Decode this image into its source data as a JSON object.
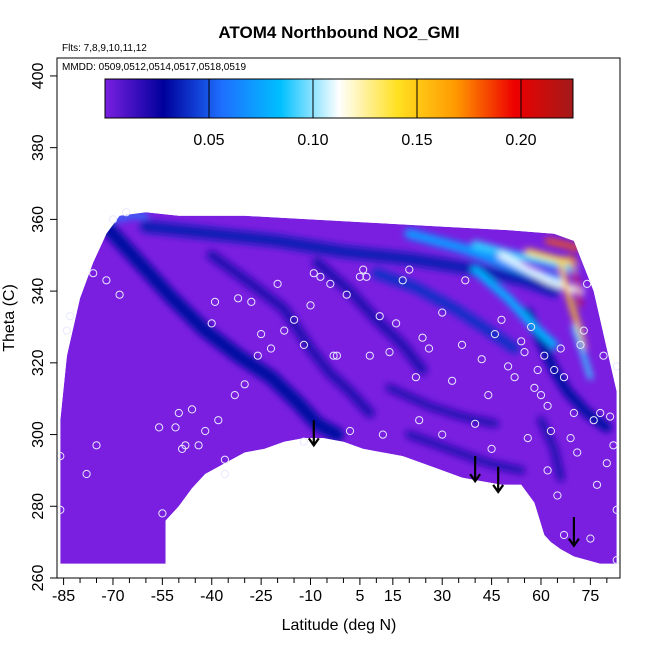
{
  "chart_data": {
    "type": "heatmap",
    "title": "ATOM4 Northbound NO2_GMI",
    "notes": [
      "Flts: 7,8,9,10,11,12",
      "MMDD: 0509,0512,0514,0517,0518,0519"
    ],
    "xlabel": "Latitude (deg N)",
    "ylabel": "Theta (C)",
    "xlim": [
      -87,
      84
    ],
    "ylim": [
      260,
      405
    ],
    "x_ticks": [
      -85,
      -70,
      -55,
      -40,
      -25,
      -10,
      5,
      15,
      30,
      45,
      60,
      75
    ],
    "y_ticks": [
      260,
      280,
      300,
      320,
      340,
      360,
      380,
      400
    ],
    "colorbar": {
      "range": [
        0.0,
        0.225
      ],
      "ticks": [
        0.05,
        0.1,
        0.15,
        0.2
      ],
      "tick_labels": [
        "0.05",
        "0.10",
        "0.15",
        "0.20"
      ],
      "colors": [
        "#7a1fe0",
        "#00009c",
        "#1e6fff",
        "#00c0ff",
        "#ffffff",
        "#ffe020",
        "#ff9900",
        "#ee0000",
        "#a31a1a"
      ]
    },
    "field": {
      "background_color": "#7a1fe0",
      "lower_boundary": [
        [
          -86,
          264
        ],
        [
          -80,
          264
        ],
        [
          -74,
          264
        ],
        [
          -68,
          264
        ],
        [
          -62,
          264
        ],
        [
          -54,
          264
        ],
        [
          -54,
          276
        ],
        [
          -50,
          280
        ],
        [
          -46,
          285
        ],
        [
          -42,
          289
        ],
        [
          -36,
          292
        ],
        [
          -30,
          295
        ],
        [
          -24,
          296
        ],
        [
          -18,
          298
        ],
        [
          -12,
          299
        ],
        [
          -6,
          299
        ],
        [
          0,
          298
        ],
        [
          6,
          296
        ],
        [
          12,
          295
        ],
        [
          18,
          294
        ],
        [
          24,
          292
        ],
        [
          30,
          290
        ],
        [
          36,
          288
        ],
        [
          42,
          287
        ],
        [
          48,
          286
        ],
        [
          54,
          286
        ],
        [
          58,
          281
        ],
        [
          61,
          272
        ],
        [
          63,
          270
        ],
        [
          66,
          268
        ],
        [
          70,
          266
        ],
        [
          74,
          265
        ],
        [
          78,
          264
        ],
        [
          83,
          264
        ]
      ],
      "upper_boundary": [
        [
          -86,
          304
        ],
        [
          -84,
          322
        ],
        [
          -80,
          338
        ],
        [
          -76,
          348
        ],
        [
          -72,
          356
        ],
        [
          -68,
          361
        ],
        [
          -60,
          362
        ],
        [
          -50,
          361
        ],
        [
          -30,
          361
        ],
        [
          -10,
          360
        ],
        [
          10,
          359
        ],
        [
          30,
          358
        ],
        [
          50,
          357
        ],
        [
          64,
          356
        ],
        [
          70,
          354
        ],
        [
          76,
          340
        ],
        [
          80,
          324
        ],
        [
          83,
          312
        ]
      ],
      "features": [
        {
          "type": "line",
          "value": 0.03,
          "points": [
            [
              -72,
              358
            ],
            [
              -62,
              348
            ],
            [
              -52,
              338
            ],
            [
              -42,
              329
            ],
            [
              -32,
              322
            ],
            [
              -22,
              316
            ],
            [
              -14,
              309
            ],
            [
              -8,
              303
            ],
            [
              -2,
              300
            ]
          ],
          "width": 14
        },
        {
          "type": "line",
          "value": 0.02,
          "points": [
            [
              -40,
              350
            ],
            [
              -28,
              342
            ],
            [
              -18,
              335
            ],
            [
              -10,
              324
            ],
            [
              -4,
              317
            ],
            [
              2,
              312
            ],
            [
              8,
              306
            ]
          ],
          "width": 10
        },
        {
          "type": "line",
          "value": 0.02,
          "points": [
            [
              -8,
              348
            ],
            [
              2,
              340
            ],
            [
              10,
              332
            ],
            [
              18,
              325
            ],
            [
              24,
              318
            ]
          ],
          "width": 10
        },
        {
          "type": "line",
          "value": 0.035,
          "points": [
            [
              -60,
              358
            ],
            [
              -40,
              356
            ],
            [
              -20,
              354
            ],
            [
              0,
              351
            ],
            [
              20,
              349
            ],
            [
              40,
              346
            ],
            [
              55,
              343
            ],
            [
              64,
              340
            ]
          ],
          "width": 12
        },
        {
          "type": "line",
          "value": 0.04,
          "points": [
            [
              10,
              345
            ],
            [
              22,
              341
            ],
            [
              34,
              335
            ],
            [
              44,
              329
            ],
            [
              52,
              324
            ]
          ],
          "width": 10
        },
        {
          "type": "line",
          "value": 0.02,
          "points": [
            [
              14,
              313
            ],
            [
              26,
              308
            ],
            [
              36,
              305
            ],
            [
              46,
              303
            ]
          ],
          "width": 8
        },
        {
          "type": "line",
          "value": 0.02,
          "points": [
            [
              20,
              300
            ],
            [
              32,
              296
            ],
            [
              44,
              292
            ],
            [
              54,
              290
            ]
          ],
          "width": 8
        },
        {
          "type": "line",
          "value": 0.03,
          "points": [
            [
              56,
              334
            ],
            [
              60,
              326
            ],
            [
              64,
              318
            ],
            [
              68,
              312
            ],
            [
              74,
              306
            ],
            [
              80,
              302
            ]
          ],
          "width": 10
        },
        {
          "type": "line",
          "value": 0.02,
          "points": [
            [
              60,
              304
            ],
            [
              64,
              296
            ],
            [
              66,
              288
            ]
          ],
          "width": 8
        },
        {
          "type": "line",
          "value": 0.07,
          "points": [
            [
              20,
              356
            ],
            [
              36,
              352
            ],
            [
              48,
              348
            ],
            [
              58,
              345
            ],
            [
              66,
              343
            ]
          ],
          "width": 10
        },
        {
          "type": "line",
          "value": 0.09,
          "points": [
            [
              40,
              353
            ],
            [
              52,
              350
            ],
            [
              62,
              348
            ],
            [
              70,
              346
            ]
          ],
          "width": 8
        },
        {
          "type": "line",
          "value": 0.08,
          "points": [
            [
              40,
              346
            ],
            [
              50,
              338
            ],
            [
              58,
              330
            ],
            [
              64,
              325
            ]
          ],
          "width": 8
        },
        {
          "type": "line",
          "value": 0.11,
          "points": [
            [
              48,
              350
            ],
            [
              56,
              346
            ],
            [
              62,
              343
            ],
            [
              68,
              341
            ],
            [
              72,
              340
            ]
          ],
          "width": 7
        },
        {
          "type": "line",
          "value": 0.14,
          "points": [
            [
              56,
              351
            ],
            [
              64,
              349
            ],
            [
              70,
              348
            ]
          ],
          "width": 6
        },
        {
          "type": "line",
          "value": 0.18,
          "points": [
            [
              62,
              354
            ],
            [
              67,
              353
            ],
            [
              71,
              352
            ]
          ],
          "width": 5
        },
        {
          "type": "line",
          "value": 0.2,
          "points": [
            [
              69,
              350
            ],
            [
              71,
              342
            ],
            [
              72,
              336
            ]
          ],
          "width": 3
        },
        {
          "type": "line",
          "value": 0.15,
          "points": [
            [
              66,
              348
            ],
            [
              68,
              340
            ],
            [
              70,
              334
            ],
            [
              72,
              328
            ],
            [
              73,
              324
            ]
          ],
          "width": 5
        },
        {
          "type": "line",
          "value": 0.09,
          "points": [
            [
              70,
              330
            ],
            [
              73,
              322
            ],
            [
              75,
              316
            ]
          ],
          "width": 5
        },
        {
          "type": "line",
          "value": 0.06,
          "points": [
            [
              -70,
              360
            ],
            [
              -64,
              361
            ],
            [
              -60,
              361
            ]
          ],
          "width": 5
        }
      ]
    },
    "observations": [
      [
        -86,
        294
      ],
      [
        -86,
        279
      ],
      [
        -84,
        329
      ],
      [
        -83,
        333
      ],
      [
        -78,
        289
      ],
      [
        -76,
        345
      ],
      [
        -75,
        297
      ],
      [
        -72,
        343
      ],
      [
        -70,
        360
      ],
      [
        -68,
        339
      ],
      [
        -66,
        362
      ],
      [
        -56,
        302
      ],
      [
        -55,
        278
      ],
      [
        -51,
        302
      ],
      [
        -50,
        306
      ],
      [
        -49,
        296
      ],
      [
        -48,
        297
      ],
      [
        -46,
        307
      ],
      [
        -44,
        297
      ],
      [
        -42,
        301
      ],
      [
        -40,
        331
      ],
      [
        -39,
        337
      ],
      [
        -38,
        304
      ],
      [
        -36,
        293
      ],
      [
        -36,
        289
      ],
      [
        -33,
        311
      ],
      [
        -32,
        338
      ],
      [
        -30,
        314
      ],
      [
        -28,
        337
      ],
      [
        -26,
        322
      ],
      [
        -25,
        328
      ],
      [
        -22,
        324
      ],
      [
        -20,
        342
      ],
      [
        -18,
        329
      ],
      [
        -15,
        332
      ],
      [
        -12,
        325
      ],
      [
        -12,
        298
      ],
      [
        -10,
        336
      ],
      [
        -9,
        345
      ],
      [
        -7,
        344
      ],
      [
        -4,
        342
      ],
      [
        -3,
        322
      ],
      [
        -2,
        322
      ],
      [
        1,
        339
      ],
      [
        2,
        301
      ],
      [
        5,
        344
      ],
      [
        6,
        346
      ],
      [
        7,
        344
      ],
      [
        8,
        322
      ],
      [
        11,
        333
      ],
      [
        12,
        300
      ],
      [
        14,
        323
      ],
      [
        16,
        331
      ],
      [
        18,
        343
      ],
      [
        20,
        346
      ],
      [
        22,
        316
      ],
      [
        23,
        304
      ],
      [
        24,
        327
      ],
      [
        26,
        324
      ],
      [
        30,
        334
      ],
      [
        30,
        300
      ],
      [
        33,
        315
      ],
      [
        36,
        325
      ],
      [
        37,
        343
      ],
      [
        40,
        303
      ],
      [
        42,
        321
      ],
      [
        44,
        311
      ],
      [
        45,
        296
      ],
      [
        46,
        328
      ],
      [
        48,
        332
      ],
      [
        50,
        319
      ],
      [
        52,
        316
      ],
      [
        54,
        326
      ],
      [
        55,
        323
      ],
      [
        56,
        299
      ],
      [
        57,
        330
      ],
      [
        58,
        313
      ],
      [
        59,
        318
      ],
      [
        60,
        311
      ],
      [
        61,
        322
      ],
      [
        62,
        308
      ],
      [
        62,
        290
      ],
      [
        63,
        301
      ],
      [
        64,
        318
      ],
      [
        65,
        283
      ],
      [
        66,
        324
      ],
      [
        67,
        316
      ],
      [
        67,
        272
      ],
      [
        69,
        299
      ],
      [
        70,
        306
      ],
      [
        71,
        295
      ],
      [
        72,
        325
      ],
      [
        73,
        329
      ],
      [
        74,
        342
      ],
      [
        75,
        271
      ],
      [
        76,
        304
      ],
      [
        77,
        286
      ],
      [
        78,
        306
      ],
      [
        79,
        322
      ],
      [
        80,
        292
      ],
      [
        81,
        305
      ],
      [
        82,
        297
      ],
      [
        83,
        319
      ],
      [
        83,
        279
      ],
      [
        83,
        265
      ]
    ],
    "arrows": [
      {
        "x": -9,
        "y_top": 304,
        "y_tip": 297
      },
      {
        "x": 40,
        "y_top": 294,
        "y_tip": 287
      },
      {
        "x": 47,
        "y_top": 291,
        "y_tip": 284
      },
      {
        "x": 70,
        "y_top": 277,
        "y_tip": 269
      }
    ]
  }
}
